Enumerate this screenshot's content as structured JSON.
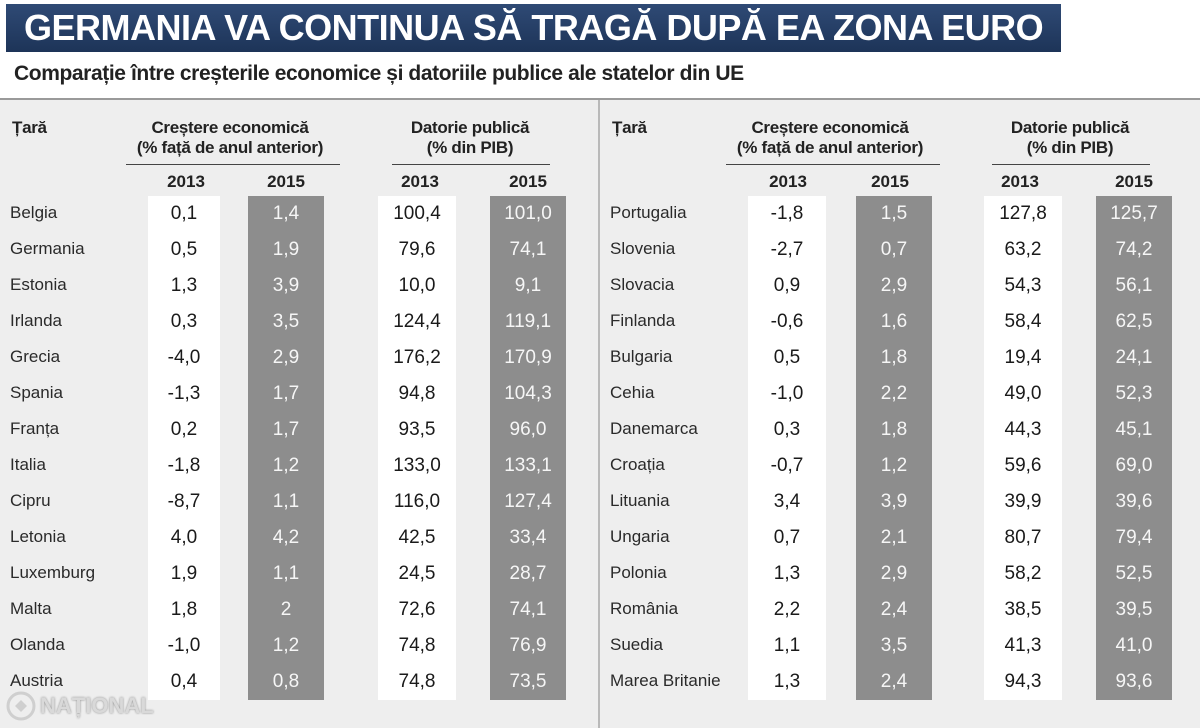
{
  "title": "GERMANIA VA CONTINUA SĂ TRAGĂ DUPĂ EA ZONA EURO",
  "subtitle": "Comparație între creșterile economice și datoriile publice ale statelor din UE",
  "headers": {
    "country": "Țară",
    "growth_line1": "Creștere economică",
    "growth_line2": "(% față de anul anterior)",
    "debt_line1": "Datorie publică",
    "debt_line2": "(% din PIB)",
    "year_a": "2013",
    "year_b": "2015"
  },
  "left_rows": [
    {
      "country": "Belgia",
      "g2013": "0,1",
      "g2015": "1,4",
      "d2013": "100,4",
      "d2015": "101,0"
    },
    {
      "country": "Germania",
      "g2013": "0,5",
      "g2015": "1,9",
      "d2013": "79,6",
      "d2015": "74,1"
    },
    {
      "country": "Estonia",
      "g2013": "1,3",
      "g2015": "3,9",
      "d2013": "10,0",
      "d2015": "9,1"
    },
    {
      "country": "Irlanda",
      "g2013": "0,3",
      "g2015": "3,5",
      "d2013": "124,4",
      "d2015": "119,1"
    },
    {
      "country": "Grecia",
      "g2013": "-4,0",
      "g2015": "2,9",
      "d2013": "176,2",
      "d2015": "170,9"
    },
    {
      "country": "Spania",
      "g2013": "-1,3",
      "g2015": "1,7",
      "d2013": "94,8",
      "d2015": "104,3"
    },
    {
      "country": "Franța",
      "g2013": "0,2",
      "g2015": "1,7",
      "d2013": "93,5",
      "d2015": "96,0"
    },
    {
      "country": "Italia",
      "g2013": "-1,8",
      "g2015": "1,2",
      "d2013": "133,0",
      "d2015": "133,1"
    },
    {
      "country": "Cipru",
      "g2013": "-8,7",
      "g2015": "1,1",
      "d2013": "116,0",
      "d2015": "127,4"
    },
    {
      "country": "Letonia",
      "g2013": "4,0",
      "g2015": "4,2",
      "d2013": "42,5",
      "d2015": "33,4"
    },
    {
      "country": "Luxemburg",
      "g2013": "1,9",
      "g2015": "1,1",
      "d2013": "24,5",
      "d2015": "28,7"
    },
    {
      "country": "Malta",
      "g2013": "1,8",
      "g2015": "2",
      "d2013": "72,6",
      "d2015": "74,1"
    },
    {
      "country": "Olanda",
      "g2013": "-1,0",
      "g2015": "1,2",
      "d2013": "74,8",
      "d2015": "76,9"
    },
    {
      "country": "Austria",
      "g2013": "0,4",
      "g2015": "0,8",
      "d2013": "74,8",
      "d2015": "73,5"
    }
  ],
  "right_rows": [
    {
      "country": "Portugalia",
      "g2013": "-1,8",
      "g2015": "1,5",
      "d2013": "127,8",
      "d2015": "125,7"
    },
    {
      "country": "Slovenia",
      "g2013": "-2,7",
      "g2015": "0,7",
      "d2013": "63,2",
      "d2015": "74,2"
    },
    {
      "country": "Slovacia",
      "g2013": "0,9",
      "g2015": "2,9",
      "d2013": "54,3",
      "d2015": "56,1"
    },
    {
      "country": "Finlanda",
      "g2013": "-0,6",
      "g2015": "1,6",
      "d2013": "58,4",
      "d2015": "62,5"
    },
    {
      "country": "Bulgaria",
      "g2013": "0,5",
      "g2015": "1,8",
      "d2013": "19,4",
      "d2015": "24,1"
    },
    {
      "country": "Cehia",
      "g2013": "-1,0",
      "g2015": "2,2",
      "d2013": "49,0",
      "d2015": "52,3"
    },
    {
      "country": "Danemarca",
      "g2013": "0,3",
      "g2015": "1,8",
      "d2013": "44,3",
      "d2015": "45,1"
    },
    {
      "country": "Croația",
      "g2013": "-0,7",
      "g2015": "1,2",
      "d2013": "59,6",
      "d2015": "69,0"
    },
    {
      "country": "Lituania",
      "g2013": "3,4",
      "g2015": "3,9",
      "d2013": "39,9",
      "d2015": "39,6"
    },
    {
      "country": "Ungaria",
      "g2013": "0,7",
      "g2015": "2,1",
      "d2013": "80,7",
      "d2015": "79,4"
    },
    {
      "country": "Polonia",
      "g2013": "1,3",
      "g2015": "2,9",
      "d2013": "58,2",
      "d2015": "52,5"
    },
    {
      "country": "România",
      "g2013": "2,2",
      "g2015": "2,4",
      "d2013": "38,5",
      "d2015": "39,5"
    },
    {
      "country": "Suedia",
      "g2013": "1,1",
      "g2015": "3,5",
      "d2013": "41,3",
      "d2015": "41,0"
    },
    {
      "country": "Marea Britanie",
      "g2013": "1,3",
      "g2015": "2,4",
      "d2013": "94,3",
      "d2015": "93,6"
    }
  ],
  "watermark": "NAȚIONAL",
  "colors": {
    "banner": "#1d3458",
    "highlight_cell": "#8d8d8d",
    "panel": "#eeeeee"
  }
}
